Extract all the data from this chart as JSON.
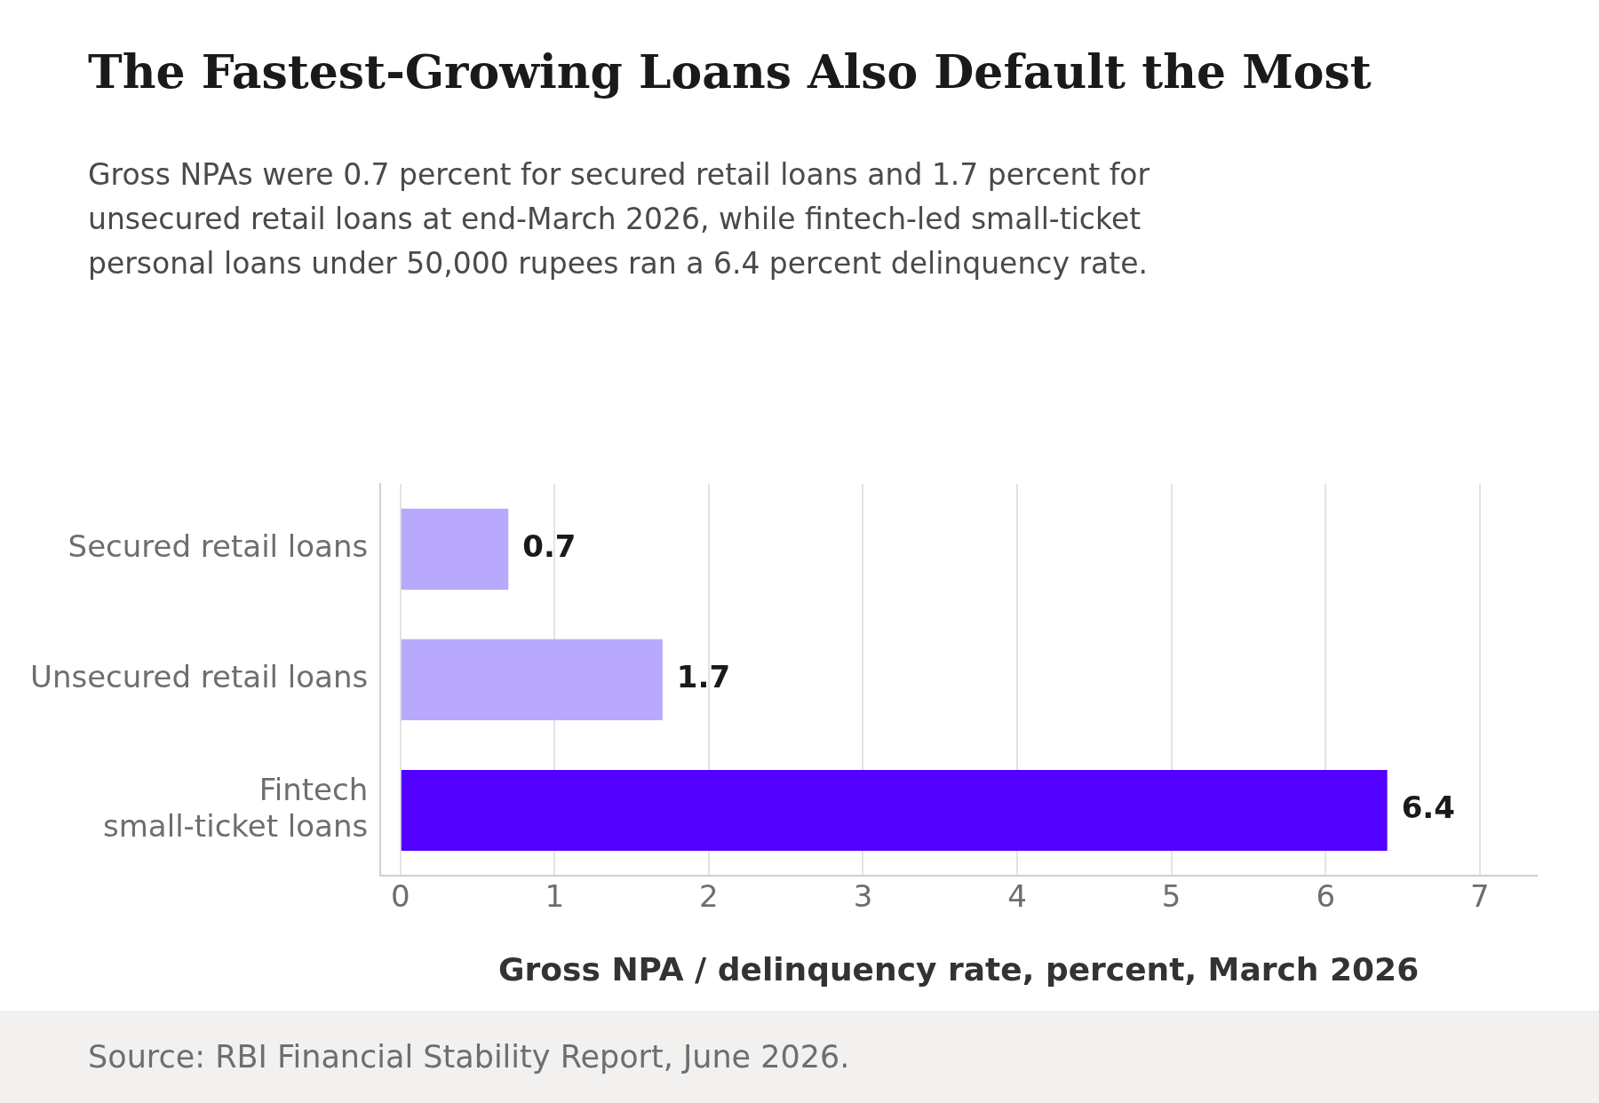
{
  "chart_data": {
    "type": "bar",
    "orientation": "horizontal",
    "title": "The Fastest-Growing Loans Also Default the Most",
    "subtitle": "Gross NPAs were 0.7 percent for secured retail loans and 1.7 percent for unsecured retail loans at end-March 2026, while fintech-led small-ticket personal loans under 50,000 rupees ran a 6.4 percent delinquency rate.",
    "xlabel": "Gross NPA / delinquency rate, percent, March 2026",
    "categories": [
      "Secured retail loans",
      "Unsecured retail loans",
      "Fintech small-ticket loans"
    ],
    "values": [
      0.7,
      1.7,
      6.4
    ],
    "colors": [
      "#b8a9fd",
      "#b8a9fd",
      "#5200ff"
    ],
    "xlim": [
      -0.13,
      7.37
    ],
    "xticks": [
      0,
      1,
      2,
      3,
      4,
      5,
      6,
      7
    ],
    "grid": "x",
    "data_labels": true,
    "annotations": [
      "Source: RBI Financial Stability Report, June 2026."
    ]
  }
}
